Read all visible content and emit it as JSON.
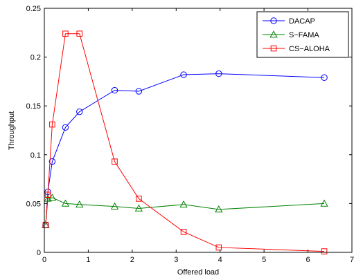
{
  "chart_data": {
    "type": "line",
    "xlabel": "Offered load",
    "ylabel": "Throughput",
    "xlim": [
      0,
      7
    ],
    "ylim": [
      0,
      0.25
    ],
    "xticks": [
      0,
      1,
      2,
      3,
      4,
      5,
      6,
      7
    ],
    "yticks": [
      0,
      0.05,
      0.1,
      0.15,
      0.2,
      0.25
    ],
    "xtick_labels": [
      "0",
      "1",
      "2",
      "3",
      "4",
      "5",
      "6",
      "7"
    ],
    "ytick_labels": [
      "0",
      "0.05",
      "0.1",
      "0.15",
      "0.2",
      "0.25"
    ],
    "grid": false,
    "legend_position": "top-right",
    "series": [
      {
        "name": "DACAP",
        "color": "#0000ff",
        "marker": "circle",
        "x": [
          0.03,
          0.08,
          0.18,
          0.48,
          0.8,
          1.6,
          2.15,
          3.17,
          3.97,
          6.37
        ],
        "y": [
          0.028,
          0.062,
          0.093,
          0.128,
          0.144,
          0.166,
          0.165,
          0.182,
          0.183,
          0.179
        ]
      },
      {
        "name": "S−FAMA",
        "color": "#008000",
        "marker": "triangle",
        "x": [
          0.03,
          0.08,
          0.18,
          0.48,
          0.8,
          1.6,
          2.15,
          3.17,
          3.97,
          6.37
        ],
        "y": [
          0.028,
          0.055,
          0.056,
          0.05,
          0.049,
          0.047,
          0.045,
          0.049,
          0.044,
          0.05
        ]
      },
      {
        "name": "CS−ALOHA",
        "color": "#ff0000",
        "marker": "square",
        "x": [
          0.03,
          0.08,
          0.18,
          0.48,
          0.8,
          1.6,
          2.15,
          3.17,
          3.97,
          6.37
        ],
        "y": [
          0.028,
          0.059,
          0.131,
          0.224,
          0.224,
          0.093,
          0.055,
          0.021,
          0.005,
          0.001
        ]
      }
    ]
  }
}
